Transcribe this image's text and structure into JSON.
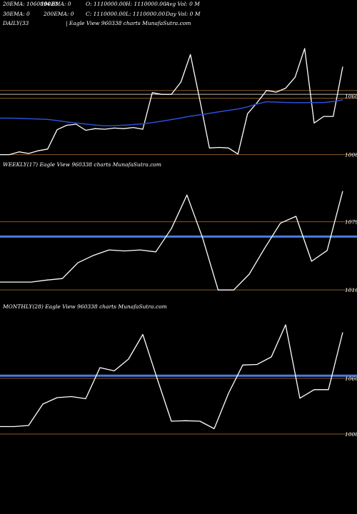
{
  "header": {
    "ema20": "20EMA: 1060894.81",
    "ema100": "100EMA: 0",
    "open": "O: 1110000.00",
    "high": "H: 1110000.00",
    "avg_vol": "Avg Vol: 0  M",
    "ema30": "30EMA: 0",
    "ema200": "200EMA: 0",
    "close": "C: 1110000.00",
    "low": "L: 1110000.00",
    "day_vol": "Day Vol: 0  M"
  },
  "chart_data": [
    {
      "type": "line",
      "label": "DAILY(33",
      "caption": "| Eagle  View  960338  charts MunafaSutra.com",
      "ylim": [
        1005800,
        1122000
      ],
      "y_ticks": [
        {
          "value": 1060894,
          "label": "1060"
        },
        {
          "value": 1008000,
          "label": "1008"
        }
      ],
      "hlines": [
        {
          "value": 1059000,
          "color": "#8a5a2a"
        },
        {
          "value": 1062500,
          "color": "#bdbdbd"
        },
        {
          "value": 1066000,
          "color": "#8a5a2a"
        },
        {
          "value": 1008000,
          "color": "#8a5a2a"
        }
      ],
      "series": [
        {
          "role": "price",
          "color": "#ffffff",
          "values": [
            1008000,
            1008000,
            1010500,
            1009000,
            1011500,
            1013000,
            1030500,
            1034500,
            1035500,
            1030000,
            1031500,
            1031000,
            1032000,
            1031500,
            1032500,
            1031000,
            1064000,
            1062500,
            1062500,
            1073500,
            1098500,
            1057000,
            1014000,
            1014500,
            1014000,
            1008500,
            1045000,
            1055000,
            1066000,
            1064500,
            1068000,
            1078000,
            1104000,
            1036500,
            1042500,
            1042500,
            1087500
          ]
        },
        {
          "role": "ema",
          "color": "#2a4fd6",
          "values": [
            1041000,
            1041000,
            1040800,
            1040500,
            1040200,
            1039900,
            1038800,
            1037600,
            1036600,
            1035600,
            1034800,
            1034000,
            1034200,
            1034600,
            1035200,
            1035800,
            1037000,
            1038300,
            1039700,
            1041200,
            1042800,
            1044100,
            1045400,
            1046700,
            1048000,
            1049300,
            1051200,
            1053800,
            1055800,
            1055500,
            1055200,
            1055000,
            1055000,
            1055100,
            1055100,
            1056000,
            1057500
          ]
        }
      ]
    },
    {
      "type": "line",
      "label": "WEEKLY(17) Eagle  View  960338  charts MunafaSutra.com",
      "ylim": [
        1000000,
        1130000
      ],
      "y_ticks": [
        {
          "value": 1079000,
          "label": "1079"
        },
        {
          "value": 1010000,
          "label": "1010"
        }
      ],
      "hlines": [
        {
          "value": 1079000,
          "color": "#8a5a2a"
        },
        {
          "value": 1010000,
          "color": "#8a5a2a"
        },
        {
          "value": 1064000,
          "color": "#4a7ce0",
          "thick": true
        }
      ],
      "series": [
        {
          "role": "price",
          "color": "#ffffff",
          "values": [
            1018000,
            1018000,
            1018000,
            1020000,
            1021500,
            1037500,
            1045000,
            1050500,
            1049500,
            1050500,
            1048500,
            1072000,
            1106000,
            1063000,
            1010000,
            1010000,
            1026000,
            1052500,
            1077500,
            1084500,
            1039000,
            1050000,
            1110000
          ]
        }
      ]
    },
    {
      "type": "line",
      "label": "MONTHLY(28) Eagle  View  960338  charts MunafaSutra.com",
      "ylim": [
        1000000,
        1120000
      ],
      "y_ticks": [
        {
          "value": 1060000,
          "label": "1060"
        },
        {
          "value": 1008000,
          "label": "1008"
        }
      ],
      "hlines": [
        {
          "value": 1060000,
          "color": "#8a5a2a"
        },
        {
          "value": 1008000,
          "color": "#8a5a2a"
        },
        {
          "value": 1062500,
          "color": "#4a7ce0",
          "thick": true
        }
      ],
      "series": [
        {
          "role": "price",
          "color": "#ffffff",
          "values": [
            1015000,
            1015000,
            1016000,
            1036000,
            1042000,
            1043000,
            1041000,
            1070000,
            1067000,
            1078000,
            1101000,
            1060000,
            1020000,
            1020500,
            1020000,
            1013000,
            1046000,
            1072500,
            1073000,
            1080000,
            1110000,
            1041500,
            1049500,
            1049500,
            1103000
          ]
        }
      ]
    }
  ]
}
